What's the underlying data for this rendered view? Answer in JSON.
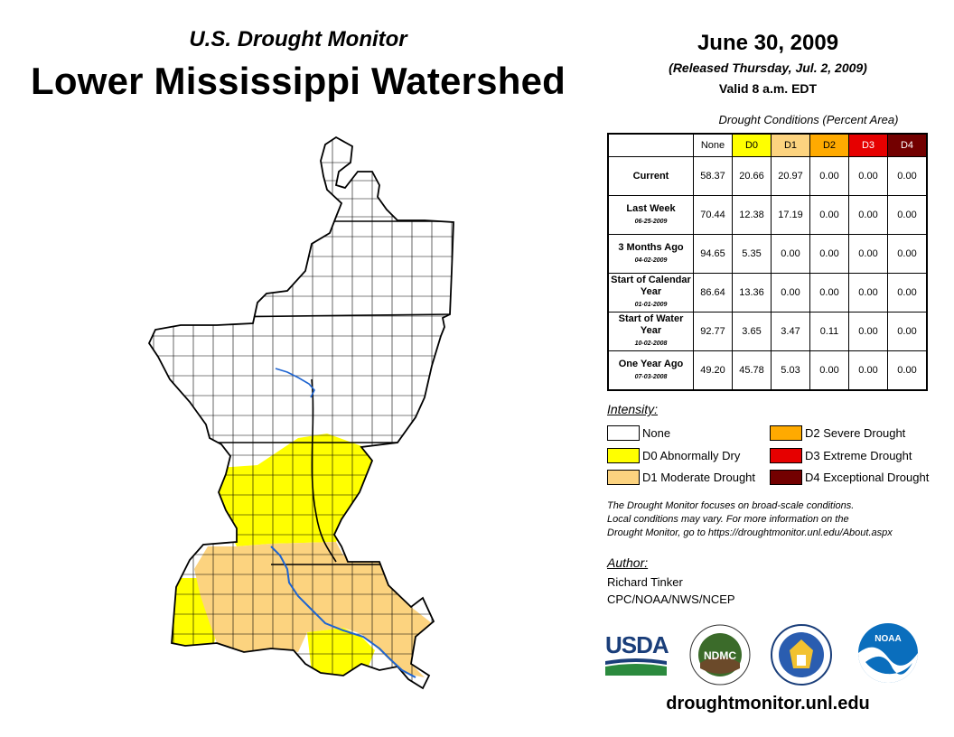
{
  "header": {
    "subtitle": "U.S. Drought Monitor",
    "title": "Lower Mississippi Watershed",
    "date": "June 30, 2009",
    "released": "(Released Thursday, Jul. 2, 2009)",
    "valid": "Valid 8 a.m. EDT"
  },
  "table": {
    "caption": "Drought Conditions (Percent Area)",
    "columns": [
      "None",
      "D0",
      "D1",
      "D2",
      "D3",
      "D4"
    ],
    "column_colors": [
      "#ffffff",
      "#ffff00",
      "#fcd37f",
      "#ffaa00",
      "#e60000",
      "#730000"
    ],
    "rows": [
      {
        "label": "Current",
        "date": "",
        "values": [
          "58.37",
          "20.66",
          "20.97",
          "0.00",
          "0.00",
          "0.00"
        ]
      },
      {
        "label": "Last Week",
        "date": "06-25-2009",
        "values": [
          "70.44",
          "12.38",
          "17.19",
          "0.00",
          "0.00",
          "0.00"
        ]
      },
      {
        "label": "3 Months Ago",
        "date": "04-02-2009",
        "values": [
          "94.65",
          "5.35",
          "0.00",
          "0.00",
          "0.00",
          "0.00"
        ]
      },
      {
        "label": "Start of Calendar Year",
        "date": "01-01-2009",
        "values": [
          "86.64",
          "13.36",
          "0.00",
          "0.00",
          "0.00",
          "0.00"
        ]
      },
      {
        "label": "Start of Water Year",
        "date": "10-02-2008",
        "values": [
          "92.77",
          "3.65",
          "3.47",
          "0.11",
          "0.00",
          "0.00"
        ]
      },
      {
        "label": "One Year Ago",
        "date": "07-03-2008",
        "values": [
          "49.20",
          "45.78",
          "5.03",
          "0.00",
          "0.00",
          "0.00"
        ]
      }
    ]
  },
  "legend": {
    "title": "Intensity:",
    "items": [
      {
        "label": "None",
        "color": "#ffffff"
      },
      {
        "label": "D0 Abnormally Dry",
        "color": "#ffff00"
      },
      {
        "label": "D1 Moderate Drought",
        "color": "#fcd37f"
      },
      {
        "label": "D2 Severe Drought",
        "color": "#ffaa00"
      },
      {
        "label": "D3 Extreme Drought",
        "color": "#e60000"
      },
      {
        "label": "D4 Exceptional Drought",
        "color": "#730000"
      }
    ]
  },
  "note": {
    "line1": "The Drought Monitor focuses on broad-scale conditions.",
    "line2": "Local conditions may vary. For more information on the",
    "line3": "Drought Monitor, go to https://droughtmonitor.unl.edu/About.aspx"
  },
  "author": {
    "title": "Author:",
    "name": "Richard Tinker",
    "org": "CPC/NOAA/NWS/NCEP"
  },
  "logos": {
    "usda": "USDA",
    "ndmc": "NDMC",
    "noaa": "NOAA"
  },
  "footer": {
    "website": "droughtmonitor.unl.edu"
  },
  "map": {
    "colors": {
      "none": "#ffffff",
      "d0": "#ffff00",
      "d1": "#fcd37f",
      "river": "#1e64d0",
      "border": "#000000"
    }
  }
}
